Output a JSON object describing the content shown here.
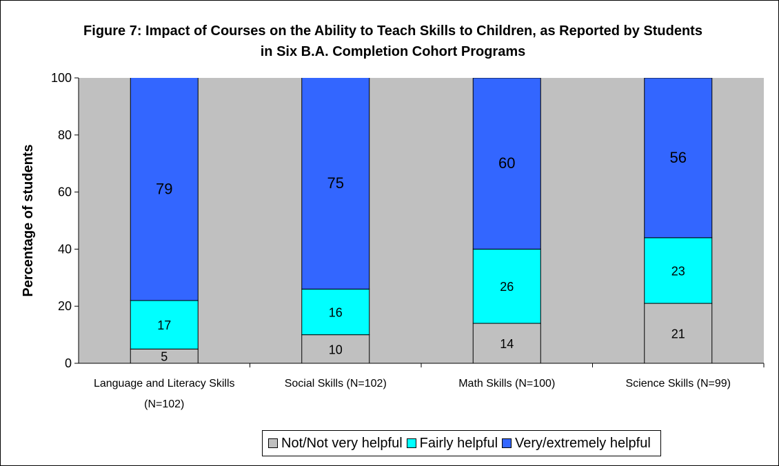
{
  "chart_data": {
    "type": "stacked_bar",
    "title": "Figure 7: Impact of Courses on the Ability to Teach Skills to Children, as Reported by Students in Six B.A. Completion Cohort Programs",
    "ylabel": "Percentage of students",
    "categories": [
      "Language and Literacy Skills (N=102)",
      "Social Skills (N=102)",
      "Math Skills (N=100)",
      "Science Skills (N=99)"
    ],
    "series": [
      {
        "name": "Not/Not very helpful",
        "color": "#c0c0c0",
        "values": [
          5,
          10,
          14,
          21
        ]
      },
      {
        "name": "Fairly helpful",
        "color": "#00ffff",
        "values": [
          17,
          16,
          26,
          23
        ]
      },
      {
        "name": "Very/extremely helpful",
        "color": "#3366ff",
        "values": [
          79,
          75,
          60,
          56
        ]
      }
    ],
    "ylim": [
      0,
      100
    ],
    "yticks": [
      0,
      20,
      40,
      60,
      80,
      100
    ],
    "plot_background": "#c0c0c0",
    "legend": "bottom"
  }
}
